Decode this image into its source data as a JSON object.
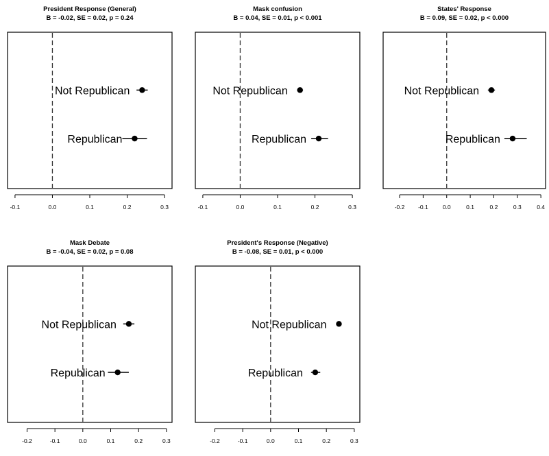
{
  "chart_data": [
    {
      "type": "scatter",
      "title": "President Response (General)",
      "subtitle": "B = -0.02, SE = 0.02, p = 0.24",
      "xlim": [
        -0.12,
        0.32
      ],
      "ticks": [
        "-0.1",
        "0.0",
        "0.1",
        "0.2",
        "0.3"
      ],
      "tick_values": [
        -0.1,
        0.0,
        0.1,
        0.2,
        0.3
      ],
      "reference_line": 0,
      "points": [
        {
          "label": "Not Republican",
          "value": 0.24,
          "low": 0.225,
          "high": 0.255
        },
        {
          "label": "Republican",
          "value": 0.22,
          "low": 0.187,
          "high": 0.253
        }
      ]
    },
    {
      "type": "scatter",
      "title": "Mask confusion",
      "subtitle": "B = 0.04, SE = 0.01, p < 0.001",
      "xlim": [
        -0.12,
        0.32
      ],
      "ticks": [
        "-0.1",
        "0.0",
        "0.1",
        "0.2",
        "0.3"
      ],
      "tick_values": [
        -0.1,
        0.0,
        0.1,
        0.2,
        0.3
      ],
      "reference_line": 0,
      "points": [
        {
          "label": "Not Republican",
          "value": 0.16,
          "low": 0.152,
          "high": 0.168
        },
        {
          "label": "Republican",
          "value": 0.21,
          "low": 0.19,
          "high": 0.235
        }
      ]
    },
    {
      "type": "scatter",
      "title": "States' Response",
      "subtitle": "B = 0.09, SE = 0.02, p < 0.000",
      "xlim": [
        -0.27,
        0.42
      ],
      "ticks": [
        "-0.2",
        "-0.1",
        "0.0",
        "0.1",
        "0.2",
        "0.3",
        "0.4"
      ],
      "tick_values": [
        -0.2,
        -0.1,
        0.0,
        0.1,
        0.2,
        0.3,
        0.4
      ],
      "reference_line": 0,
      "points": [
        {
          "label": "Not Republican",
          "value": 0.19,
          "low": 0.175,
          "high": 0.205
        },
        {
          "label": "Republican",
          "value": 0.28,
          "low": 0.245,
          "high": 0.34
        }
      ]
    },
    {
      "type": "scatter",
      "title": "Mask Debate",
      "subtitle": "B = -0.04, SE = 0.02, p = 0.08",
      "xlim": [
        -0.27,
        0.32
      ],
      "ticks": [
        "-0.2",
        "-0.1",
        "0.0",
        "0.1",
        "0.2",
        "0.3"
      ],
      "tick_values": [
        -0.2,
        -0.1,
        0.0,
        0.1,
        0.2,
        0.3
      ],
      "reference_line": 0,
      "points": [
        {
          "label": "Not Republican",
          "value": 0.165,
          "low": 0.145,
          "high": 0.185
        },
        {
          "label": "Republican",
          "value": 0.125,
          "low": 0.09,
          "high": 0.165
        }
      ]
    },
    {
      "type": "scatter",
      "title": "President's Response (Negative)",
      "subtitle": "B = -0.08, SE = 0.01, p < 0.000",
      "xlim": [
        -0.27,
        0.32
      ],
      "ticks": [
        "-0.2",
        "-0.1",
        "0.0",
        "0.1",
        "0.2",
        "0.3"
      ],
      "tick_values": [
        -0.2,
        -0.1,
        0.0,
        0.1,
        0.2,
        0.3
      ],
      "reference_line": 0,
      "points": [
        {
          "label": "Not Republican",
          "value": 0.245,
          "low": 0.235,
          "high": 0.255
        },
        {
          "label": "Republican",
          "value": 0.16,
          "low": 0.145,
          "high": 0.178
        }
      ]
    }
  ]
}
